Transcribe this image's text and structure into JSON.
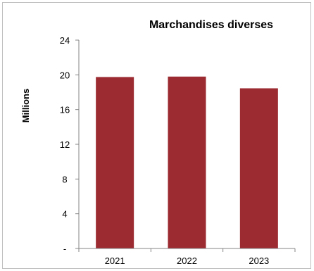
{
  "chart_data": {
    "type": "bar",
    "title": "Marchandises diverses",
    "xlabel": "",
    "ylabel": "Millions",
    "categories": [
      "2021",
      "2022",
      "2023"
    ],
    "series": [
      {
        "values": [
          19.75,
          19.8,
          18.45
        ]
      }
    ],
    "ylim": [
      0,
      24
    ],
    "yticks": [
      0,
      4,
      8,
      12,
      16,
      20,
      24
    ],
    "ytick_labels": [
      "-",
      "4",
      "8",
      "12",
      "16",
      "20",
      "24"
    ],
    "bar_color": "#9b2a31",
    "axis_color": "#868686",
    "grid": false,
    "legend": "none"
  }
}
